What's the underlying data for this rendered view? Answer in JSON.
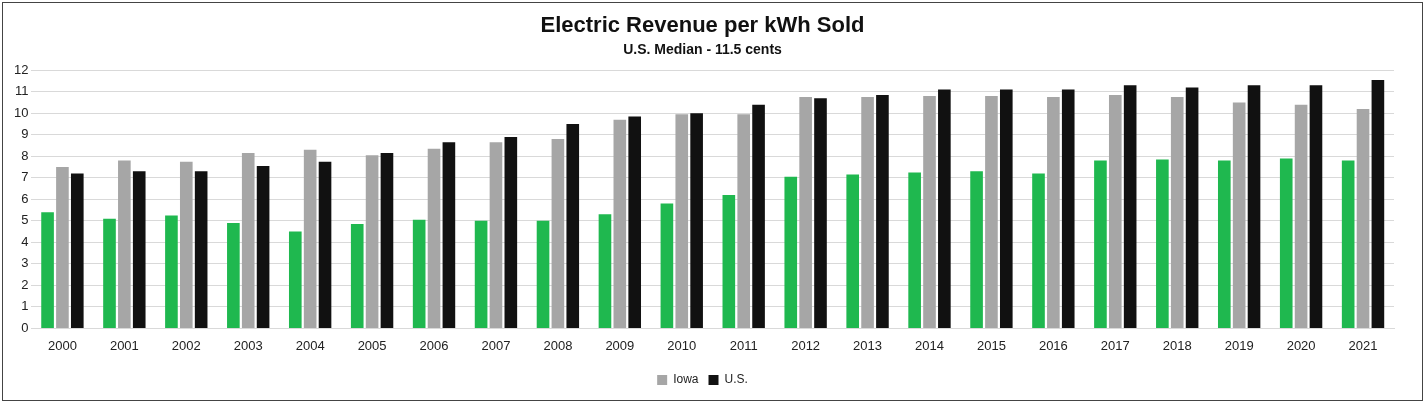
{
  "chart_data": {
    "type": "bar",
    "title": "Electric Revenue per kWh Sold",
    "subtitle": "U.S. Median - 11.5 cents",
    "categories": [
      "2000",
      "2001",
      "2002",
      "2003",
      "2004",
      "2005",
      "2006",
      "2007",
      "2008",
      "2009",
      "2010",
      "2011",
      "2012",
      "2013",
      "2014",
      "2015",
      "2016",
      "2017",
      "2018",
      "2019",
      "2020",
      "2021"
    ],
    "series": [
      {
        "color": "#1fb84f",
        "values": [
          5.4,
          5.1,
          5.25,
          4.9,
          4.5,
          4.85,
          5.05,
          5.0,
          5.0,
          5.3,
          5.8,
          6.2,
          7.05,
          7.15,
          7.25,
          7.3,
          7.2,
          7.8,
          7.85,
          7.8,
          7.9,
          7.8
        ]
      },
      {
        "name": "Iowa",
        "color": "#a6a6a6",
        "values": [
          7.5,
          7.8,
          7.75,
          8.15,
          8.3,
          8.05,
          8.35,
          8.65,
          8.8,
          9.7,
          9.95,
          9.95,
          10.75,
          10.75,
          10.8,
          10.8,
          10.75,
          10.85,
          10.75,
          10.5,
          10.4,
          10.2
        ]
      },
      {
        "name": "U.S.",
        "color": "#111111",
        "values": [
          7.2,
          7.3,
          7.3,
          7.55,
          7.75,
          8.15,
          8.65,
          8.9,
          9.5,
          9.85,
          10.0,
          10.4,
          10.7,
          10.85,
          11.1,
          11.1,
          11.1,
          11.3,
          11.2,
          11.3,
          11.3,
          11.55
        ]
      }
    ],
    "ylim": [
      0,
      12
    ],
    "yticks": [
      0,
      1,
      2,
      3,
      4,
      5,
      6,
      7,
      8,
      9,
      10,
      11,
      12
    ],
    "grid": "y",
    "legend": "bottom"
  }
}
